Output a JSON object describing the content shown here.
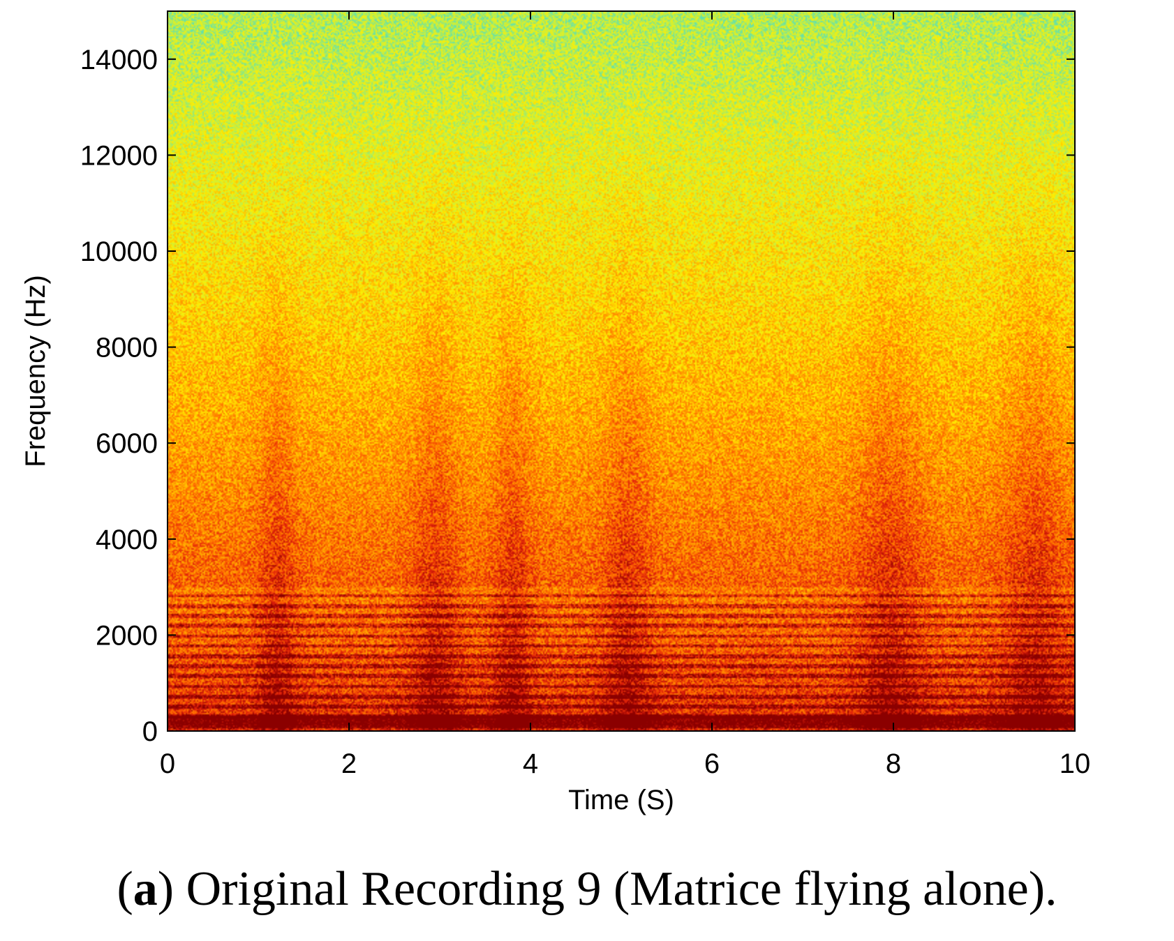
{
  "chart_data": {
    "type": "heatmap",
    "title": "",
    "xlabel": "Time (S)",
    "ylabel": "Frequency (Hz)",
    "xlim": [
      0,
      10
    ],
    "ylim": [
      0,
      15000
    ],
    "x_ticks": [
      "0",
      "2",
      "4",
      "6",
      "8",
      "10"
    ],
    "y_ticks": [
      "0",
      "2000",
      "4000",
      "6000",
      "8000",
      "10000",
      "12000",
      "14000"
    ],
    "x_tick_values": [
      0,
      2,
      4,
      6,
      8,
      10
    ],
    "y_tick_values": [
      0,
      2000,
      4000,
      6000,
      8000,
      10000,
      12000,
      14000
    ],
    "colormap": [
      "#8b0000",
      "#e0200a",
      "#ff6a00",
      "#ffae00",
      "#ffee00",
      "#c8f040",
      "#60e0b0"
    ],
    "colormap_description": "dark red (high energy) → orange → yellow → cyan (low energy)",
    "harmonic_spacing_hz": 210,
    "harmonic_bands_max_hz": 3000,
    "high_energy_time_regions_s": [
      [
        2.7,
        3.2
      ],
      [
        3.6,
        4.0
      ],
      [
        7.6,
        8.3
      ],
      [
        9.2,
        9.9
      ],
      [
        4.8,
        5.3
      ],
      [
        1.0,
        1.4
      ]
    ],
    "grid": false,
    "legend": "none"
  },
  "caption": {
    "label": "a",
    "open": "(",
    "close": ")",
    "text": " Original Recording 9 (Matrice flying alone)."
  }
}
